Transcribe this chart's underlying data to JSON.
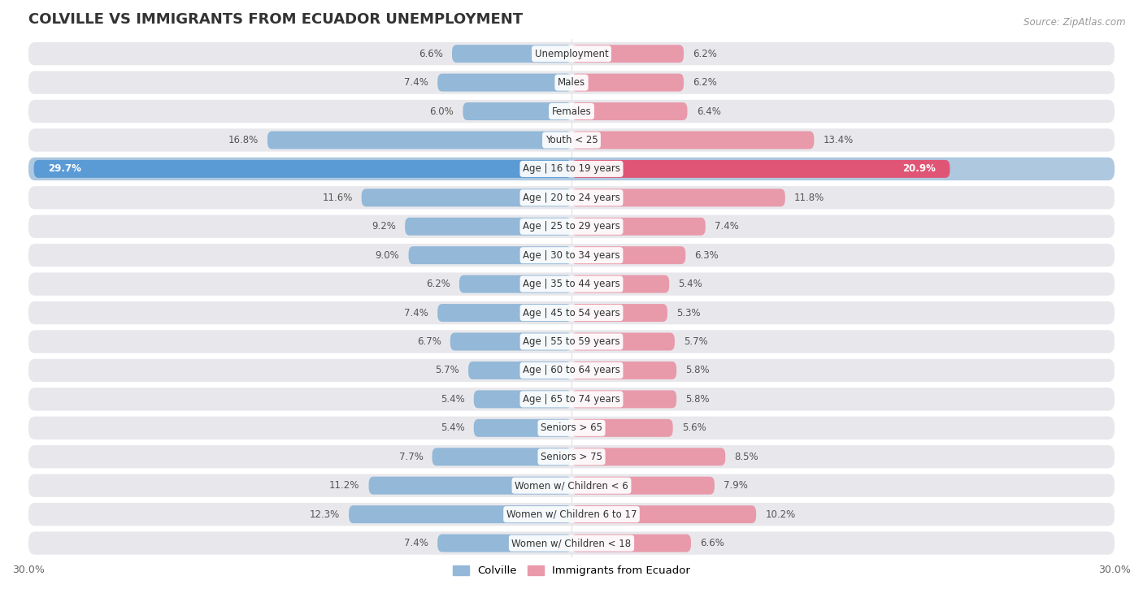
{
  "title": "COLVILLE VS IMMIGRANTS FROM ECUADOR UNEMPLOYMENT",
  "source": "Source: ZipAtlas.com",
  "categories": [
    "Unemployment",
    "Males",
    "Females",
    "Youth < 25",
    "Age | 16 to 19 years",
    "Age | 20 to 24 years",
    "Age | 25 to 29 years",
    "Age | 30 to 34 years",
    "Age | 35 to 44 years",
    "Age | 45 to 54 years",
    "Age | 55 to 59 years",
    "Age | 60 to 64 years",
    "Age | 65 to 74 years",
    "Seniors > 65",
    "Seniors > 75",
    "Women w/ Children < 6",
    "Women w/ Children 6 to 17",
    "Women w/ Children < 18"
  ],
  "colville_values": [
    6.6,
    7.4,
    6.0,
    16.8,
    29.7,
    11.6,
    9.2,
    9.0,
    6.2,
    7.4,
    6.7,
    5.7,
    5.4,
    5.4,
    7.7,
    11.2,
    12.3,
    7.4
  ],
  "ecuador_values": [
    6.2,
    6.2,
    6.4,
    13.4,
    20.9,
    11.8,
    7.4,
    6.3,
    5.4,
    5.3,
    5.7,
    5.8,
    5.8,
    5.6,
    8.5,
    7.9,
    10.2,
    6.6
  ],
  "colville_color": "#93b8d8",
  "ecuador_color": "#e89aab",
  "colville_highlight_bar": "#5b9bd5",
  "ecuador_highlight_bar": "#e05575",
  "highlight_row_bg": "#aec8e0",
  "row_bg": "#e8e8ec",
  "gap_bg": "#ffffff",
  "highlight_row": 4,
  "axis_limit": 30.0,
  "legend_colville": "Colville",
  "legend_ecuador": "Immigrants from Ecuador",
  "title_fontsize": 13,
  "label_fontsize": 8.5,
  "value_fontsize": 8.5
}
